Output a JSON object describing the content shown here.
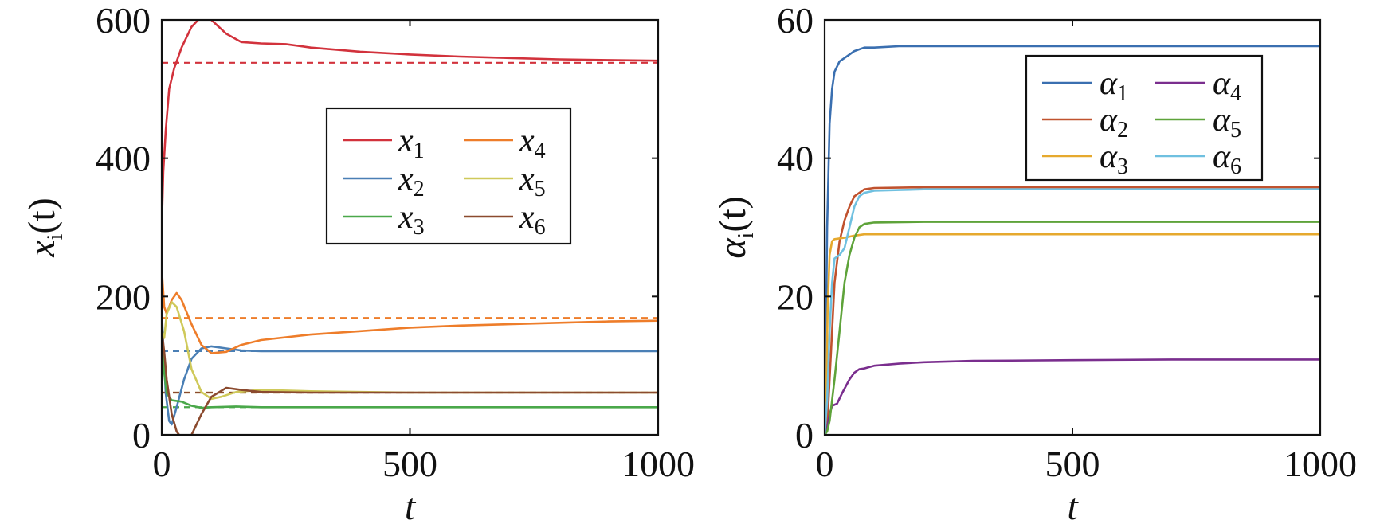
{
  "chart_data": [
    {
      "type": "line",
      "xlabel": "t",
      "ylabel": "x",
      "ylabel_sub": "i",
      "ylabel_arg": "(t)",
      "xlim": [
        0,
        1000
      ],
      "ylim": [
        0,
        600
      ],
      "xticks": [
        0,
        500,
        1000
      ],
      "yticks": [
        0,
        200,
        400,
        600
      ],
      "xtick_labels": [
        "0",
        "500",
        "1000"
      ],
      "ytick_labels": [
        "0",
        "200",
        "400",
        "600"
      ],
      "grid": false,
      "legend_position": "upper-middle-right",
      "series": [
        {
          "name": "x",
          "sub": "1",
          "color": "#d2323c",
          "x": [
            0,
            3,
            8,
            15,
            25,
            40,
            60,
            80,
            100,
            130,
            160,
            200,
            250,
            300,
            400,
            500,
            600,
            700,
            800,
            900,
            1000
          ],
          "y": [
            300,
            380,
            440,
            500,
            530,
            560,
            590,
            605,
            600,
            580,
            568,
            566,
            565,
            560,
            554,
            550,
            547,
            545,
            543,
            542,
            541
          ],
          "reference": 538
        },
        {
          "name": "x",
          "sub": "2",
          "color": "#4a7fb5",
          "x": [
            0,
            3,
            8,
            15,
            20,
            30,
            45,
            60,
            80,
            100,
            130,
            160,
            200,
            300,
            500,
            1000
          ],
          "y": [
            180,
            130,
            60,
            20,
            15,
            40,
            80,
            110,
            125,
            128,
            125,
            122,
            121,
            121,
            121,
            121
          ],
          "reference": 121
        },
        {
          "name": "x",
          "sub": "3",
          "color": "#4aa84a",
          "x": [
            0,
            5,
            10,
            20,
            40,
            60,
            80,
            100,
            150,
            200,
            300,
            500,
            1000
          ],
          "y": [
            140,
            90,
            60,
            50,
            48,
            42,
            39,
            40,
            41,
            40,
            40,
            40,
            40
          ],
          "reference": 40
        },
        {
          "name": "x",
          "sub": "4",
          "color": "#ee7d2a",
          "x": [
            0,
            5,
            10,
            20,
            30,
            40,
            60,
            80,
            100,
            130,
            160,
            200,
            300,
            400,
            500,
            600,
            700,
            800,
            900,
            1000
          ],
          "y": [
            240,
            185,
            175,
            195,
            205,
            195,
            160,
            130,
            118,
            120,
            130,
            137,
            145,
            150,
            155,
            158,
            160,
            162,
            164,
            165
          ],
          "reference": 169
        },
        {
          "name": "x",
          "sub": "5",
          "color": "#cfc95a",
          "x": [
            0,
            5,
            10,
            20,
            30,
            45,
            60,
            80,
            100,
            120,
            150,
            200,
            300,
            500,
            1000
          ],
          "y": [
            150,
            140,
            175,
            192,
            185,
            150,
            95,
            62,
            52,
            55,
            62,
            65,
            63,
            61,
            61
          ],
          "reference": 61
        },
        {
          "name": "x",
          "sub": "6",
          "color": "#8b4a2e",
          "x": [
            0,
            5,
            10,
            20,
            30,
            40,
            50,
            60,
            80,
            100,
            130,
            160,
            200,
            300,
            500,
            1000
          ],
          "y": [
            150,
            120,
            80,
            30,
            5,
            -5,
            -8,
            0,
            30,
            55,
            68,
            65,
            62,
            61,
            61,
            61
          ],
          "reference": 61
        }
      ]
    },
    {
      "type": "line",
      "xlabel": "t",
      "ylabel": "α",
      "ylabel_sub": "i",
      "ylabel_arg": "(t)",
      "xlim": [
        0,
        1000
      ],
      "ylim": [
        0,
        60
      ],
      "xticks": [
        0,
        500,
        1000
      ],
      "yticks": [
        0,
        20,
        40,
        60
      ],
      "xtick_labels": [
        "0",
        "500",
        "1000"
      ],
      "ytick_labels": [
        "0",
        "20",
        "40",
        "60"
      ],
      "grid": false,
      "legend_position": "top-right",
      "series": [
        {
          "name": "α",
          "sub": "1",
          "color": "#3a6fb0",
          "x": [
            0,
            2,
            5,
            10,
            15,
            20,
            30,
            40,
            60,
            80,
            100,
            150,
            200,
            500,
            1000
          ],
          "y": [
            0,
            10,
            30,
            45,
            50,
            52.5,
            54,
            54.5,
            55.5,
            56,
            56,
            56.2,
            56.2,
            56.2,
            56.2
          ]
        },
        {
          "name": "α",
          "sub": "2",
          "color": "#c0522e",
          "x": [
            0,
            5,
            10,
            20,
            30,
            40,
            50,
            60,
            80,
            100,
            200,
            500,
            1000
          ],
          "y": [
            0,
            1,
            8,
            22,
            28,
            31,
            33,
            34.5,
            35.5,
            35.7,
            35.8,
            35.8,
            35.8
          ]
        },
        {
          "name": "α",
          "sub": "3",
          "color": "#e6a92e",
          "x": [
            0,
            3,
            6,
            10,
            15,
            20,
            40,
            60,
            80,
            100,
            200,
            500,
            1000
          ],
          "y": [
            0,
            5,
            18,
            26,
            28,
            28.3,
            28.5,
            28.8,
            29,
            29,
            29,
            29,
            29
          ]
        },
        {
          "name": "α",
          "sub": "4",
          "color": "#7a2e8e",
          "x": [
            0,
            5,
            10,
            15,
            25,
            35,
            50,
            60,
            70,
            80,
            90,
            100,
            150,
            200,
            300,
            500,
            700,
            1000
          ],
          "y": [
            0,
            1,
            3,
            4.2,
            4.5,
            6,
            8,
            9,
            9.5,
            9.6,
            9.8,
            10,
            10.3,
            10.5,
            10.7,
            10.8,
            10.9,
            10.9
          ]
        },
        {
          "name": "α",
          "sub": "5",
          "color": "#5ea33a",
          "x": [
            0,
            5,
            10,
            20,
            30,
            40,
            50,
            60,
            70,
            80,
            100,
            200,
            500,
            1000
          ],
          "y": [
            0,
            0.5,
            2,
            8,
            15,
            22,
            26,
            28.5,
            30,
            30.5,
            30.7,
            30.8,
            30.8,
            30.8
          ]
        },
        {
          "name": "α",
          "sub": "6",
          "color": "#6fc0e0",
          "x": [
            0,
            5,
            10,
            15,
            20,
            30,
            40,
            50,
            60,
            70,
            80,
            100,
            150,
            200,
            500,
            1000
          ],
          "y": [
            0,
            5,
            15,
            22,
            25.5,
            26,
            27,
            30,
            33,
            34.5,
            35,
            35.3,
            35.4,
            35.5,
            35.5,
            35.5
          ]
        }
      ]
    }
  ]
}
